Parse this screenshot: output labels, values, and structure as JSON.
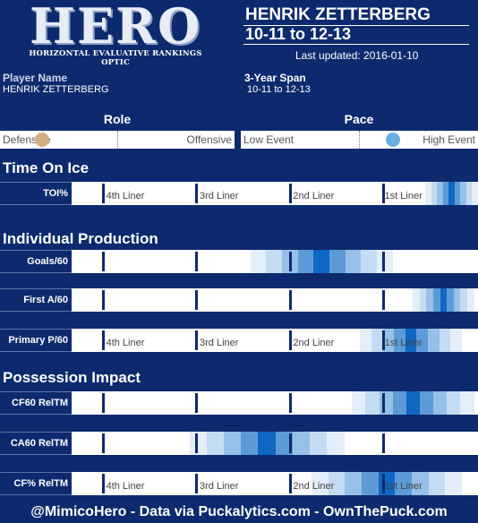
{
  "header": {
    "logo_word": "HERO",
    "logo_subtitle": "HORIZONTAL EVALUATIVE RANKINGS OPTIC",
    "player_name": "HENRIK ZETTERBERG",
    "span": "10-11 to 12-13",
    "last_updated": "Last updated: 2016-01-10"
  },
  "info": {
    "player_label": "Player Name",
    "player_value": "HENRIK ZETTERBERG",
    "span_label": "3-Year Span",
    "span_value": "10-11 to 12-13"
  },
  "role": {
    "title": "Role",
    "left": "Defensive",
    "right": "Offensive",
    "position": 0.18,
    "dot_color": "#d4ad82"
  },
  "pace": {
    "title": "Pace",
    "left": "Low Event",
    "right": "High Event",
    "position": 0.64,
    "dot_color": "#6aaee0"
  },
  "tiers": [
    "4th Liner",
    "3rd Liner",
    "2nd Liner",
    "1st Liner"
  ],
  "sections": [
    {
      "title": "Time On Ice",
      "rows": [
        {
          "label": "TOI%",
          "show_tiers": true,
          "bands": [
            {
              "c": "#e3eefa",
              "w": 1
            },
            {
              "c": "#c4dcf3",
              "w": 1
            },
            {
              "c": "#96c0e8",
              "w": 1
            },
            {
              "c": "#5d9bd8",
              "w": 1
            },
            {
              "c": "#0f67c4",
              "w": 1
            },
            {
              "c": "#5d9bd8",
              "w": 1
            },
            {
              "c": "#96c0e8",
              "w": 1
            },
            {
              "c": "#c4dcf3",
              "w": 1
            },
            {
              "c": "#e3eefa",
              "w": 1
            }
          ],
          "range": [
            0.87,
            1.0
          ]
        }
      ]
    },
    {
      "title": "Individual Production",
      "rows": [
        {
          "label": "Goals/60",
          "show_tiers": false,
          "bands": [
            {
              "c": "#e3eefa",
              "w": 1
            },
            {
              "c": "#c4dcf3",
              "w": 1
            },
            {
              "c": "#96c0e8",
              "w": 1
            },
            {
              "c": "#5d9bd8",
              "w": 1
            },
            {
              "c": "#0f67c4",
              "w": 1
            },
            {
              "c": "#5d9bd8",
              "w": 1
            },
            {
              "c": "#96c0e8",
              "w": 1
            },
            {
              "c": "#c4dcf3",
              "w": 1
            },
            {
              "c": "#e3eefa",
              "w": 1
            }
          ],
          "range": [
            0.44,
            0.79
          ]
        },
        {
          "label": "First A/60",
          "show_tiers": false,
          "bands": [
            {
              "c": "#e3eefa",
              "w": 1
            },
            {
              "c": "#c4dcf3",
              "w": 1
            },
            {
              "c": "#96c0e8",
              "w": 1
            },
            {
              "c": "#5d9bd8",
              "w": 1
            },
            {
              "c": "#0f67c4",
              "w": 1
            },
            {
              "c": "#5d9bd8",
              "w": 1
            },
            {
              "c": "#96c0e8",
              "w": 1
            },
            {
              "c": "#c4dcf3",
              "w": 1
            },
            {
              "c": "#e3eefa",
              "w": 1
            }
          ],
          "range": [
            0.84,
            0.99
          ]
        },
        {
          "label": "Primary P/60",
          "show_tiers": true,
          "bands": [
            {
              "c": "#e3eefa",
              "w": 1
            },
            {
              "c": "#c4dcf3",
              "w": 1
            },
            {
              "c": "#96c0e8",
              "w": 1
            },
            {
              "c": "#5d9bd8",
              "w": 1
            },
            {
              "c": "#0f67c4",
              "w": 1
            },
            {
              "c": "#5d9bd8",
              "w": 1
            },
            {
              "c": "#96c0e8",
              "w": 1
            },
            {
              "c": "#c4dcf3",
              "w": 1
            },
            {
              "c": "#e3eefa",
              "w": 1
            }
          ],
          "range": [
            0.71,
            0.96
          ]
        }
      ]
    },
    {
      "title": "Possession Impact",
      "rows": [
        {
          "label": "CF60 RelTM",
          "show_tiers": false,
          "bands": [
            {
              "c": "#e3eefa",
              "w": 1
            },
            {
              "c": "#c4dcf3",
              "w": 1
            },
            {
              "c": "#96c0e8",
              "w": 1
            },
            {
              "c": "#5d9bd8",
              "w": 1
            },
            {
              "c": "#0f67c4",
              "w": 1
            },
            {
              "c": "#5d9bd8",
              "w": 1
            },
            {
              "c": "#96c0e8",
              "w": 1
            },
            {
              "c": "#c4dcf3",
              "w": 1
            },
            {
              "c": "#e3eefa",
              "w": 1
            }
          ],
          "range": [
            0.69,
            0.99
          ]
        },
        {
          "label": "CA60 RelTM",
          "show_tiers": false,
          "bands": [
            {
              "c": "#e3eefa",
              "w": 1
            },
            {
              "c": "#c4dcf3",
              "w": 1
            },
            {
              "c": "#96c0e8",
              "w": 1
            },
            {
              "c": "#5d9bd8",
              "w": 1
            },
            {
              "c": "#0f67c4",
              "w": 1
            },
            {
              "c": "#5d9bd8",
              "w": 1
            },
            {
              "c": "#96c0e8",
              "w": 1
            },
            {
              "c": "#c4dcf3",
              "w": 1
            },
            {
              "c": "#e3eefa",
              "w": 1
            }
          ],
          "range": [
            0.29,
            0.67
          ]
        },
        {
          "label": "CF% RelTM",
          "show_tiers": true,
          "bands": [
            {
              "c": "#e3eefa",
              "w": 1
            },
            {
              "c": "#c4dcf3",
              "w": 1
            },
            {
              "c": "#96c0e8",
              "w": 1
            },
            {
              "c": "#5d9bd8",
              "w": 1
            },
            {
              "c": "#0f67c4",
              "w": 1
            },
            {
              "c": "#5d9bd8",
              "w": 1
            },
            {
              "c": "#96c0e8",
              "w": 1
            },
            {
              "c": "#c4dcf3",
              "w": 1
            },
            {
              "c": "#e3eefa",
              "w": 1
            }
          ],
          "range": [
            0.59,
            0.96
          ]
        }
      ]
    }
  ],
  "footer": "@MimicoHero - Data via Puckalytics.com - OwnThePuck.com"
}
